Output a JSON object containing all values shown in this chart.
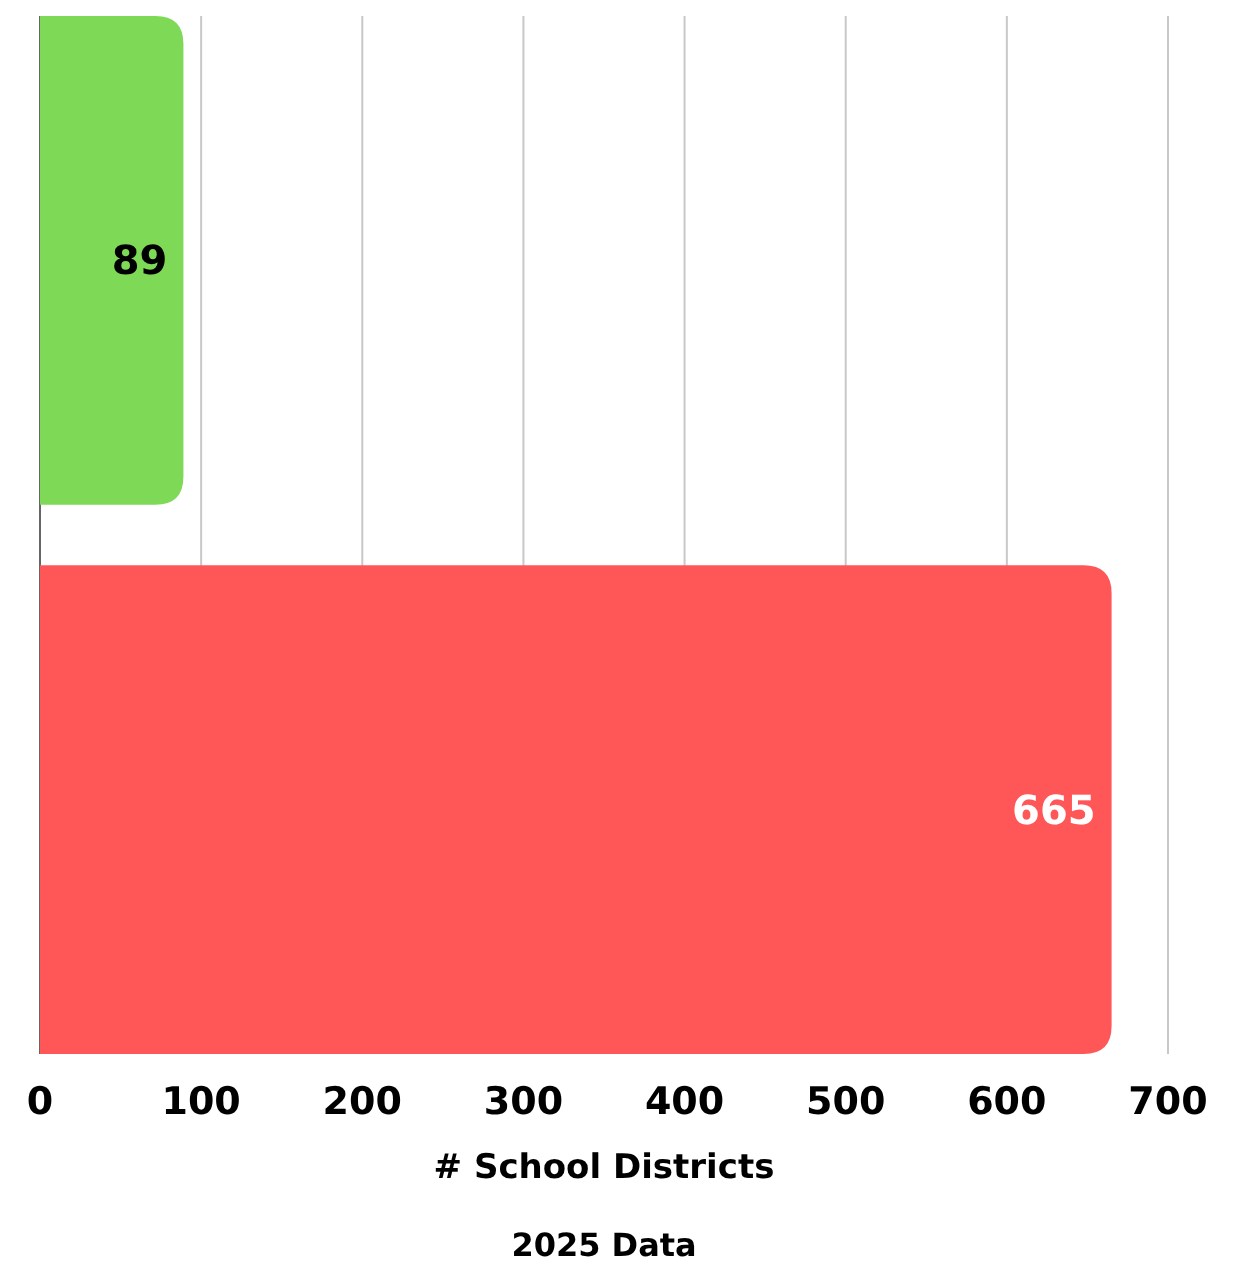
{
  "chart_data": {
    "type": "bar",
    "orientation": "horizontal",
    "categories": [
      null,
      null
    ],
    "values": [
      89,
      665
    ],
    "colors": [
      "#7ed957",
      "#ff5757"
    ],
    "xlim": [
      0,
      700
    ],
    "xticks": [
      0,
      100,
      200,
      300,
      400,
      500,
      600,
      700
    ],
    "grid": "x",
    "data_labels": true,
    "xlabel": "# School Districts",
    "annotations": [
      "2025 Data"
    ]
  }
}
